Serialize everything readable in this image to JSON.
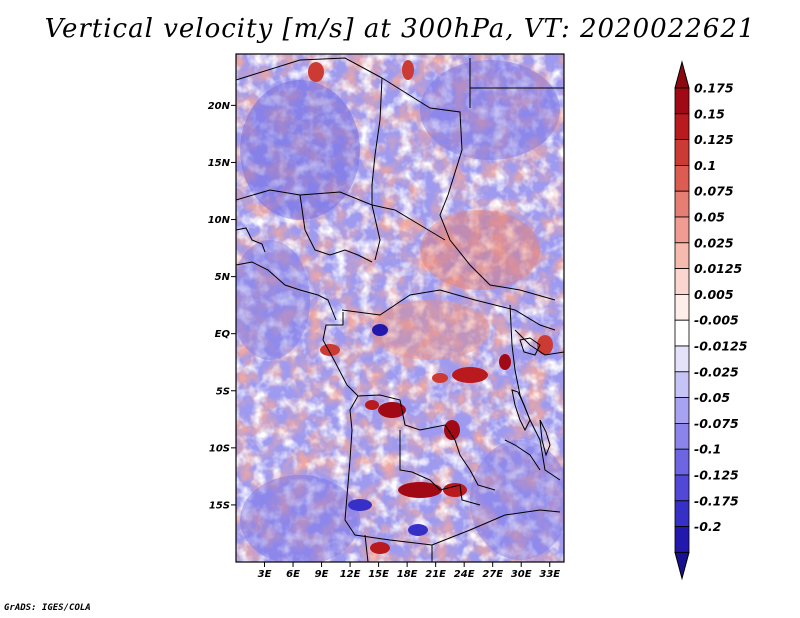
{
  "title": "Vertical velocity [m/s] at 300hPa, VT: 2020022621",
  "credit": "GrADS: IGES/COLA",
  "map": {
    "lon_range": [
      0,
      34.5
    ],
    "lat_range": [
      -20,
      24.5
    ],
    "lat_ticks": [
      {
        "value": 20,
        "label": "20N"
      },
      {
        "value": 15,
        "label": "15N"
      },
      {
        "value": 10,
        "label": "10N"
      },
      {
        "value": 5,
        "label": "5N"
      },
      {
        "value": 0,
        "label": "EQ"
      },
      {
        "value": -5,
        "label": "5S"
      },
      {
        "value": -10,
        "label": "10S"
      },
      {
        "value": -15,
        "label": "15S"
      }
    ],
    "lon_ticks": [
      {
        "value": 3,
        "label": "3E"
      },
      {
        "value": 6,
        "label": "6E"
      },
      {
        "value": 9,
        "label": "9E"
      },
      {
        "value": 12,
        "label": "12E"
      },
      {
        "value": 15,
        "label": "15E"
      },
      {
        "value": 18,
        "label": "18E"
      },
      {
        "value": 21,
        "label": "21E"
      },
      {
        "value": 24,
        "label": "24E"
      },
      {
        "value": 27,
        "label": "27E"
      },
      {
        "value": 30,
        "label": "30E"
      },
      {
        "value": 33,
        "label": "33E"
      }
    ]
  },
  "colorbar": {
    "levels": [
      {
        "label": "0.175",
        "color": "#a10a14"
      },
      {
        "label": "0.15",
        "color": "#b81a1e"
      },
      {
        "label": "0.125",
        "color": "#cc3a34"
      },
      {
        "label": "0.1",
        "color": "#dc5c52"
      },
      {
        "label": "0.075",
        "color": "#e77e74"
      },
      {
        "label": "0.05",
        "color": "#f09c92"
      },
      {
        "label": "0.025",
        "color": "#f7baaf"
      },
      {
        "label": "0.0125",
        "color": "#fbd6cf"
      },
      {
        "label": "0.005",
        "color": "#feeeea"
      },
      {
        "label": "-0.005",
        "color": "#ffffff"
      },
      {
        "label": "-0.0125",
        "color": "#e4e2fb"
      },
      {
        "label": "-0.025",
        "color": "#c6c3f6"
      },
      {
        "label": "-0.05",
        "color": "#a8a3f0"
      },
      {
        "label": "-0.075",
        "color": "#8b84ea"
      },
      {
        "label": "-0.1",
        "color": "#6d65e2"
      },
      {
        "label": "-0.125",
        "color": "#5248d8"
      },
      {
        "label": "-0.175",
        "color": "#3730c6"
      },
      {
        "label": "-0.2",
        "color": "#2218ad"
      }
    ],
    "top_cap_color": "#8a0a10",
    "bottom_cap_color": "#1a1190"
  }
}
